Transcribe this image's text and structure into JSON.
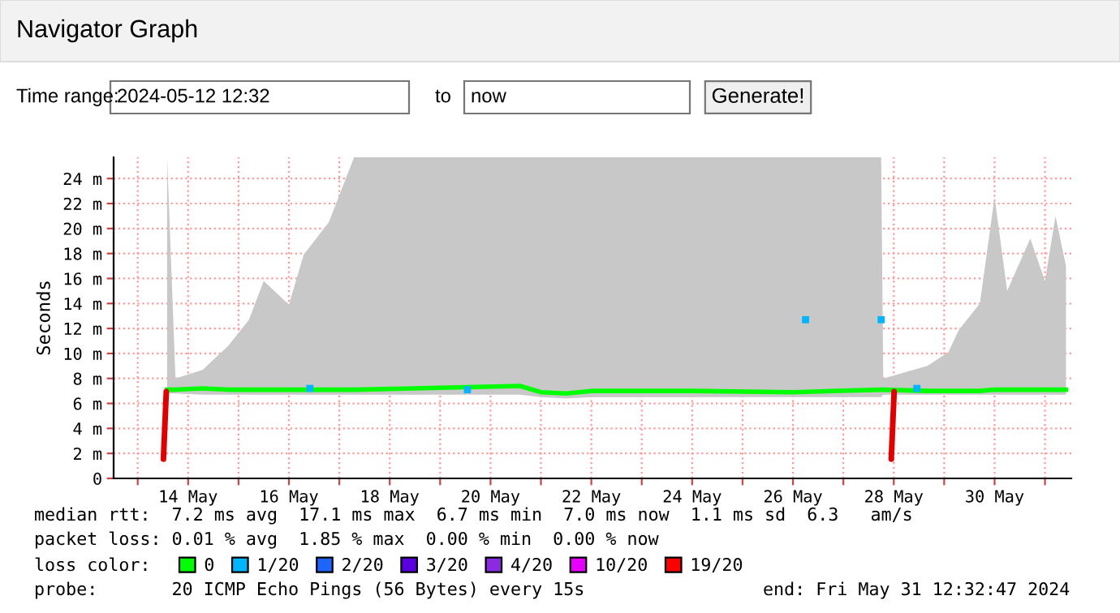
{
  "chart_data": {
    "type": "line",
    "title": "Navigator Graph",
    "ylabel": "Seconds",
    "x": [
      "2024-05-13T14:00",
      "2024-05-13T18:00",
      "2024-05-14T07:00",
      "2024-05-14T19:00",
      "2024-05-15T05:00",
      "2024-05-15T12:00",
      "2024-05-16T00:00",
      "2024-05-16T07:00",
      "2024-05-16T19:00",
      "2024-05-17T07:00",
      "2024-05-20T14:00",
      "2024-05-21T00:00",
      "2024-05-21T12:00",
      "2024-05-22T00:00",
      "2024-05-24T00:00",
      "2024-05-26T00:00",
      "2024-05-27T18:00",
      "2024-05-27T19:00",
      "2024-05-28T16:00",
      "2024-05-29T02:00",
      "2024-05-29T07:00",
      "2024-05-29T17:00",
      "2024-05-30T00:00",
      "2024-05-30T06:00",
      "2024-05-30T17:00",
      "2024-05-31T00:00",
      "2024-05-31T05:00",
      "2024-05-31T10:00"
    ],
    "series": [
      {
        "name": "0",
        "color": "#00ff00",
        "values": [
          7.1,
          7.1,
          7.2,
          7.1,
          7.1,
          7.1,
          7.1,
          7.1,
          7.1,
          7.1,
          7.4,
          6.9,
          6.8,
          7.0,
          7.0,
          6.9,
          7.1,
          7.1,
          7.0,
          7.0,
          7.0,
          7.0,
          7.1,
          7.1,
          7.1,
          7.1,
          7.1,
          7.1
        ],
        "lower": [
          6.8,
          6.8,
          6.7,
          6.7,
          6.7,
          6.7,
          6.7,
          6.7,
          6.7,
          6.7,
          6.7,
          6.5,
          6.4,
          6.5,
          6.5,
          6.5,
          6.5,
          6.7,
          6.7,
          6.7,
          6.7,
          6.7,
          6.7,
          6.7,
          6.7,
          6.7,
          6.7,
          6.7
        ],
        "upper": [
          25.7,
          8.0,
          8.7,
          10.6,
          12.7,
          15.8,
          13.9,
          17.9,
          20.5,
          25.7,
          25.7,
          25.7,
          25.7,
          25.7,
          25.7,
          25.7,
          25.7,
          8.0,
          9.0,
          10.1,
          11.9,
          14.0,
          22.5,
          15.0,
          19.2,
          15.8,
          21.0,
          17.0
        ]
      },
      {
        "name": "1/20",
        "type": "scatter",
        "color": "#00b4ff",
        "x": [
          "2024-05-16T10:00",
          "2024-05-19T13:00",
          "2024-05-26T06:00",
          "2024-05-27T18:00",
          "2024-05-28T11:00"
        ],
        "values": [
          7.2,
          7.1,
          12.7,
          12.7,
          7.2
        ]
      },
      {
        "name": "2/20",
        "type": "scatter",
        "color": "#1e64ff",
        "values": [
          null,
          null,
          null,
          null,
          null,
          null,
          null,
          null,
          null,
          null,
          null,
          null,
          null,
          null,
          null,
          null,
          null,
          null,
          null,
          null,
          null,
          null,
          null,
          null,
          null,
          null,
          null,
          null
        ]
      },
      {
        "name": "3/20",
        "type": "scatter",
        "color": "#5a00e0",
        "values": [
          null,
          null,
          null,
          null,
          null,
          null,
          null,
          null,
          null,
          null,
          null,
          null,
          null,
          null,
          null,
          null,
          null,
          null,
          null,
          null,
          null,
          null,
          null,
          null,
          null,
          null,
          null,
          null
        ]
      },
      {
        "name": "4/20",
        "type": "scatter",
        "color": "#8a2be2",
        "values": [
          null,
          null,
          null,
          null,
          null,
          null,
          null,
          null,
          null,
          null,
          null,
          null,
          null,
          null,
          null,
          null,
          null,
          null,
          null,
          null,
          null,
          null,
          null,
          null,
          null,
          null,
          null,
          null
        ]
      },
      {
        "name": "10/20",
        "type": "scatter",
        "color": "#e600ff",
        "values": [
          null,
          null,
          null,
          null,
          null,
          null,
          null,
          null,
          null,
          null,
          null,
          null,
          null,
          null,
          null,
          null,
          null,
          null,
          null,
          null,
          null,
          null,
          null,
          null,
          null,
          null,
          null,
          null
        ]
      },
      {
        "name": "19/20",
        "type": "scatter",
        "color": "#ff0000",
        "values": [
          null,
          null,
          null,
          null,
          null,
          null,
          null,
          null,
          null,
          null,
          null,
          null,
          null,
          null,
          null,
          null,
          null,
          null,
          null,
          null,
          null,
          null,
          null,
          null,
          null,
          null,
          null,
          null
        ]
      }
    ],
    "legend": "bottom",
    "legend_title": "loss color:",
    "xlim": [
      "2024-05-12T12:32",
      "2024-05-31T12:32"
    ],
    "xticks": [
      {
        "value": "2024-05-13",
        "label": null
      },
      {
        "value": "2024-05-14",
        "label": "14 May"
      },
      {
        "value": "2024-05-15",
        "label": null
      },
      {
        "value": "2024-05-16",
        "label": "16 May"
      },
      {
        "value": "2024-05-17",
        "label": null
      },
      {
        "value": "2024-05-18",
        "label": "18 May"
      },
      {
        "value": "2024-05-19",
        "label": null
      },
      {
        "value": "2024-05-20",
        "label": "20 May"
      },
      {
        "value": "2024-05-21",
        "label": null
      },
      {
        "value": "2024-05-22",
        "label": "22 May"
      },
      {
        "value": "2024-05-23",
        "label": null
      },
      {
        "value": "2024-05-24",
        "label": "24 May"
      },
      {
        "value": "2024-05-25",
        "label": null
      },
      {
        "value": "2024-05-26",
        "label": "26 May"
      },
      {
        "value": "2024-05-27",
        "label": null
      },
      {
        "value": "2024-05-28",
        "label": "28 May"
      },
      {
        "value": "2024-05-29",
        "label": null
      },
      {
        "value": "2024-05-30",
        "label": "30 May"
      },
      {
        "value": "2024-05-31",
        "label": null
      }
    ],
    "ylim": [
      0,
      25.7
    ],
    "yticks": [
      0,
      {
        "value": 2,
        "label": "2 m"
      },
      {
        "value": 4,
        "label": "4 m"
      },
      {
        "value": 6,
        "label": "6 m"
      },
      {
        "value": 8,
        "label": "8 m"
      },
      {
        "value": 10,
        "label": "10 m"
      },
      {
        "value": 12,
        "label": "12 m"
      },
      {
        "value": 14,
        "label": "14 m"
      },
      {
        "value": 16,
        "label": "16 m"
      },
      {
        "value": 18,
        "label": "18 m"
      },
      {
        "value": 20,
        "label": "20 m"
      },
      {
        "value": 22,
        "label": "22 m"
      },
      {
        "value": 24,
        "label": "24 m"
      }
    ],
    "grid": true,
    "annotations": [
      "Time range:",
      "2024-05-12 12:32",
      "to",
      "now",
      "Generate!",
      "median rtt:  7.2 ms avg  17.1 ms max  6.7 ms min  7.0 ms now  1.1 ms sd  6.3   am/s",
      "packet loss: 0.01 % avg  1.85 % max  0.00 % min  0.00 % now",
      "probe:       20 ICMP Echo Pings (56 Bytes) every 15s",
      "end: Fri May 31 12:32:47 2024"
    ]
  }
}
